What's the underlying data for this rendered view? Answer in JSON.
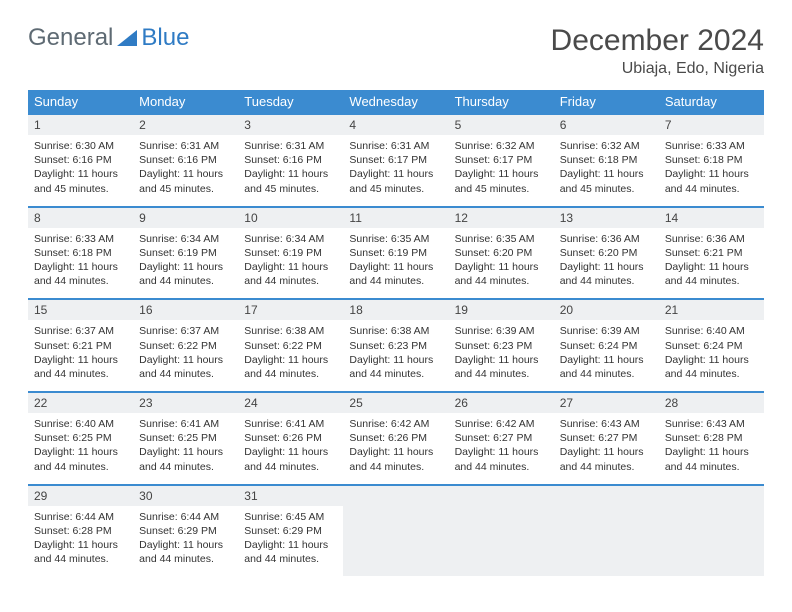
{
  "logo": {
    "text1": "General",
    "text2": "Blue"
  },
  "title": "December 2024",
  "location": "Ubiaja, Edo, Nigeria",
  "colors": {
    "header_bg": "#3b8bd0",
    "header_text": "#ffffff",
    "daynum_bg": "#eef0f2",
    "border": "#3b8bd0",
    "body_text": "#333333",
    "logo_gray": "#5e6a73",
    "logo_blue": "#2f7bc4",
    "page_bg": "#ffffff"
  },
  "day_headers": [
    "Sunday",
    "Monday",
    "Tuesday",
    "Wednesday",
    "Thursday",
    "Friday",
    "Saturday"
  ],
  "weeks": [
    [
      {
        "n": "1",
        "sr": "Sunrise: 6:30 AM",
        "ss": "Sunset: 6:16 PM",
        "d1": "Daylight: 11 hours",
        "d2": "and 45 minutes."
      },
      {
        "n": "2",
        "sr": "Sunrise: 6:31 AM",
        "ss": "Sunset: 6:16 PM",
        "d1": "Daylight: 11 hours",
        "d2": "and 45 minutes."
      },
      {
        "n": "3",
        "sr": "Sunrise: 6:31 AM",
        "ss": "Sunset: 6:16 PM",
        "d1": "Daylight: 11 hours",
        "d2": "and 45 minutes."
      },
      {
        "n": "4",
        "sr": "Sunrise: 6:31 AM",
        "ss": "Sunset: 6:17 PM",
        "d1": "Daylight: 11 hours",
        "d2": "and 45 minutes."
      },
      {
        "n": "5",
        "sr": "Sunrise: 6:32 AM",
        "ss": "Sunset: 6:17 PM",
        "d1": "Daylight: 11 hours",
        "d2": "and 45 minutes."
      },
      {
        "n": "6",
        "sr": "Sunrise: 6:32 AM",
        "ss": "Sunset: 6:18 PM",
        "d1": "Daylight: 11 hours",
        "d2": "and 45 minutes."
      },
      {
        "n": "7",
        "sr": "Sunrise: 6:33 AM",
        "ss": "Sunset: 6:18 PM",
        "d1": "Daylight: 11 hours",
        "d2": "and 44 minutes."
      }
    ],
    [
      {
        "n": "8",
        "sr": "Sunrise: 6:33 AM",
        "ss": "Sunset: 6:18 PM",
        "d1": "Daylight: 11 hours",
        "d2": "and 44 minutes."
      },
      {
        "n": "9",
        "sr": "Sunrise: 6:34 AM",
        "ss": "Sunset: 6:19 PM",
        "d1": "Daylight: 11 hours",
        "d2": "and 44 minutes."
      },
      {
        "n": "10",
        "sr": "Sunrise: 6:34 AM",
        "ss": "Sunset: 6:19 PM",
        "d1": "Daylight: 11 hours",
        "d2": "and 44 minutes."
      },
      {
        "n": "11",
        "sr": "Sunrise: 6:35 AM",
        "ss": "Sunset: 6:19 PM",
        "d1": "Daylight: 11 hours",
        "d2": "and 44 minutes."
      },
      {
        "n": "12",
        "sr": "Sunrise: 6:35 AM",
        "ss": "Sunset: 6:20 PM",
        "d1": "Daylight: 11 hours",
        "d2": "and 44 minutes."
      },
      {
        "n": "13",
        "sr": "Sunrise: 6:36 AM",
        "ss": "Sunset: 6:20 PM",
        "d1": "Daylight: 11 hours",
        "d2": "and 44 minutes."
      },
      {
        "n": "14",
        "sr": "Sunrise: 6:36 AM",
        "ss": "Sunset: 6:21 PM",
        "d1": "Daylight: 11 hours",
        "d2": "and 44 minutes."
      }
    ],
    [
      {
        "n": "15",
        "sr": "Sunrise: 6:37 AM",
        "ss": "Sunset: 6:21 PM",
        "d1": "Daylight: 11 hours",
        "d2": "and 44 minutes."
      },
      {
        "n": "16",
        "sr": "Sunrise: 6:37 AM",
        "ss": "Sunset: 6:22 PM",
        "d1": "Daylight: 11 hours",
        "d2": "and 44 minutes."
      },
      {
        "n": "17",
        "sr": "Sunrise: 6:38 AM",
        "ss": "Sunset: 6:22 PM",
        "d1": "Daylight: 11 hours",
        "d2": "and 44 minutes."
      },
      {
        "n": "18",
        "sr": "Sunrise: 6:38 AM",
        "ss": "Sunset: 6:23 PM",
        "d1": "Daylight: 11 hours",
        "d2": "and 44 minutes."
      },
      {
        "n": "19",
        "sr": "Sunrise: 6:39 AM",
        "ss": "Sunset: 6:23 PM",
        "d1": "Daylight: 11 hours",
        "d2": "and 44 minutes."
      },
      {
        "n": "20",
        "sr": "Sunrise: 6:39 AM",
        "ss": "Sunset: 6:24 PM",
        "d1": "Daylight: 11 hours",
        "d2": "and 44 minutes."
      },
      {
        "n": "21",
        "sr": "Sunrise: 6:40 AM",
        "ss": "Sunset: 6:24 PM",
        "d1": "Daylight: 11 hours",
        "d2": "and 44 minutes."
      }
    ],
    [
      {
        "n": "22",
        "sr": "Sunrise: 6:40 AM",
        "ss": "Sunset: 6:25 PM",
        "d1": "Daylight: 11 hours",
        "d2": "and 44 minutes."
      },
      {
        "n": "23",
        "sr": "Sunrise: 6:41 AM",
        "ss": "Sunset: 6:25 PM",
        "d1": "Daylight: 11 hours",
        "d2": "and 44 minutes."
      },
      {
        "n": "24",
        "sr": "Sunrise: 6:41 AM",
        "ss": "Sunset: 6:26 PM",
        "d1": "Daylight: 11 hours",
        "d2": "and 44 minutes."
      },
      {
        "n": "25",
        "sr": "Sunrise: 6:42 AM",
        "ss": "Sunset: 6:26 PM",
        "d1": "Daylight: 11 hours",
        "d2": "and 44 minutes."
      },
      {
        "n": "26",
        "sr": "Sunrise: 6:42 AM",
        "ss": "Sunset: 6:27 PM",
        "d1": "Daylight: 11 hours",
        "d2": "and 44 minutes."
      },
      {
        "n": "27",
        "sr": "Sunrise: 6:43 AM",
        "ss": "Sunset: 6:27 PM",
        "d1": "Daylight: 11 hours",
        "d2": "and 44 minutes."
      },
      {
        "n": "28",
        "sr": "Sunrise: 6:43 AM",
        "ss": "Sunset: 6:28 PM",
        "d1": "Daylight: 11 hours",
        "d2": "and 44 minutes."
      }
    ],
    [
      {
        "n": "29",
        "sr": "Sunrise: 6:44 AM",
        "ss": "Sunset: 6:28 PM",
        "d1": "Daylight: 11 hours",
        "d2": "and 44 minutes."
      },
      {
        "n": "30",
        "sr": "Sunrise: 6:44 AM",
        "ss": "Sunset: 6:29 PM",
        "d1": "Daylight: 11 hours",
        "d2": "and 44 minutes."
      },
      {
        "n": "31",
        "sr": "Sunrise: 6:45 AM",
        "ss": "Sunset: 6:29 PM",
        "d1": "Daylight: 11 hours",
        "d2": "and 44 minutes."
      },
      {
        "empty": true
      },
      {
        "empty": true
      },
      {
        "empty": true
      },
      {
        "empty": true
      }
    ]
  ]
}
